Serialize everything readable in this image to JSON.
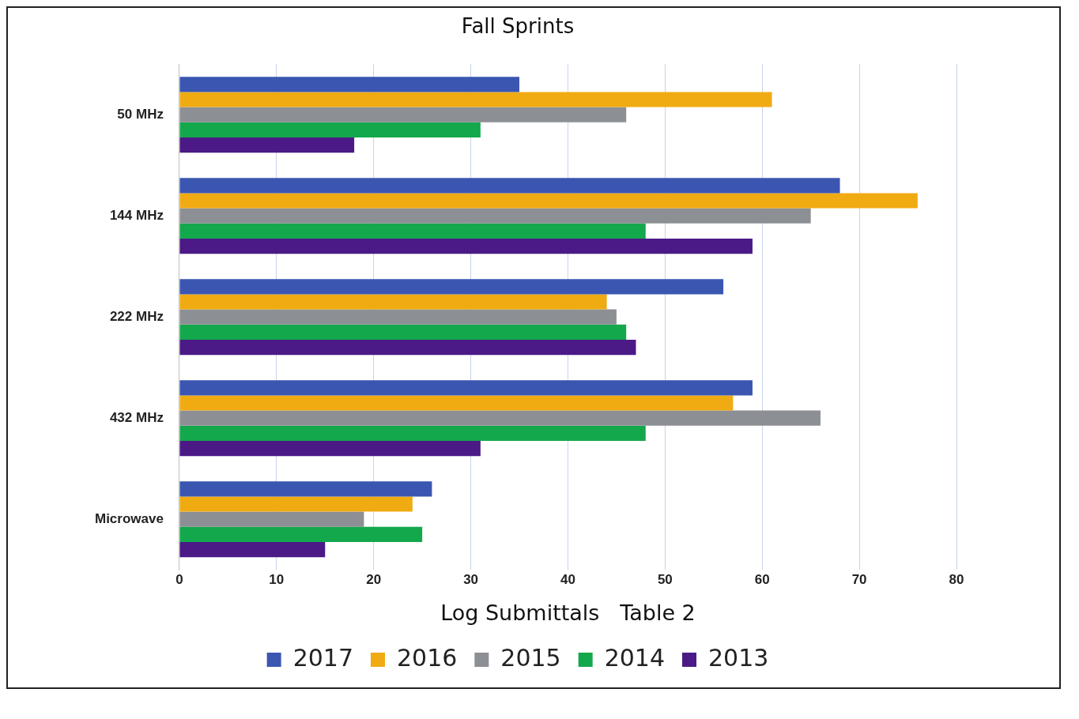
{
  "chart_data": {
    "type": "bar",
    "orientation": "horizontal",
    "title": "Fall Sprints",
    "xlabel": "Log Submittals   Table 2",
    "categories": [
      "50 MHz",
      "144 MHz",
      "222 MHz",
      "432 MHz",
      "Microwave"
    ],
    "series": [
      {
        "name": "2017",
        "color": "#3a56b0",
        "values": [
          35,
          68,
          56,
          59,
          26
        ]
      },
      {
        "name": "2016",
        "color": "#f0ab12",
        "values": [
          61,
          76,
          44,
          57,
          24
        ]
      },
      {
        "name": "2015",
        "color": "#8c8f94",
        "values": [
          46,
          65,
          45,
          66,
          19
        ]
      },
      {
        "name": "2014",
        "color": "#14a84c",
        "values": [
          31,
          48,
          46,
          48,
          25
        ]
      },
      {
        "name": "2013",
        "color": "#4b1a86",
        "values": [
          18,
          59,
          47,
          31,
          15
        ]
      }
    ],
    "xlim": [
      0,
      80
    ],
    "xticks": [
      0,
      10,
      20,
      30,
      40,
      50,
      60,
      70,
      80
    ],
    "grid": "x",
    "legend": "bottom"
  }
}
